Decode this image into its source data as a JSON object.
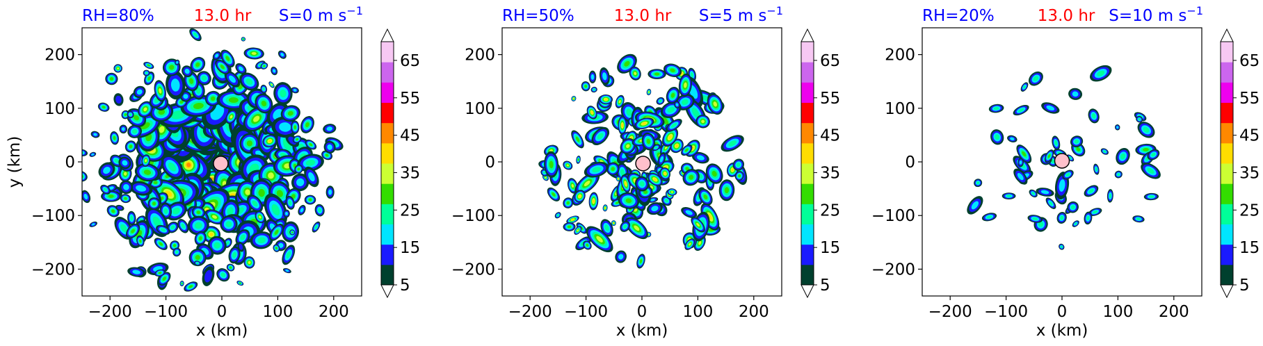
{
  "chart_data": [
    {
      "type": "heatmap",
      "title_parts": {
        "rh": "RH=80%",
        "time": "13.0 hr",
        "shear": "S=0 m s",
        "shear_exp": "−1"
      },
      "xlabel": "x (km)",
      "ylabel": "y (km)",
      "xlim": [
        -250,
        250
      ],
      "ylim": [
        -250,
        250
      ],
      "xticks": [
        -200,
        -100,
        0,
        100,
        200
      ],
      "yticks": [
        -200,
        -100,
        0,
        100,
        200
      ],
      "xtick_labels": [
        "−200",
        "−100",
        "0",
        "100",
        "200"
      ],
      "ytick_labels": [
        "−200",
        "−100",
        "0",
        "100",
        "200"
      ],
      "center_marker": {
        "x": -2,
        "y": -3,
        "color": "#ffc0cb"
      },
      "structure": "dense spiral rainbands with large continuous area, peak values 45-55 near core",
      "feature_count": 60,
      "intensity": 1.0
    },
    {
      "type": "heatmap",
      "title_parts": {
        "rh": "RH=50%",
        "time": "13.0 hr",
        "shear": "S=5 m s",
        "shear_exp": "−1"
      },
      "xlabel": "x (km)",
      "ylabel": "",
      "xlim": [
        -250,
        250
      ],
      "ylim": [
        -250,
        250
      ],
      "xticks": [
        -200,
        -100,
        0,
        100,
        200
      ],
      "yticks": [
        -200,
        -100,
        0,
        100,
        200
      ],
      "xtick_labels": [
        "−200",
        "−100",
        "0",
        "100",
        "200"
      ],
      "ytick_labels": [
        "−200",
        "−100",
        "0",
        "100",
        "200"
      ],
      "center_marker": {
        "x": 2,
        "y": -3,
        "color": "#ffc0cb"
      },
      "structure": "scattered convective cells arranged in rings, values mostly 15-45",
      "feature_count": 45,
      "intensity": 0.7
    },
    {
      "type": "heatmap",
      "title_parts": {
        "rh": "RH=20%",
        "time": "13.0 hr",
        "shear": "S=10 m s",
        "shear_exp": "−1"
      },
      "xlabel": "x (km)",
      "ylabel": "",
      "xlim": [
        -250,
        250
      ],
      "ylim": [
        -250,
        250
      ],
      "xticks": [
        -200,
        -100,
        0,
        100,
        200
      ],
      "yticks": [
        -200,
        -100,
        0,
        100,
        200
      ],
      "xtick_labels": [
        "−200",
        "−100",
        "0",
        "100",
        "200"
      ],
      "ytick_labels": [
        "−200",
        "−100",
        "0",
        "100",
        "200"
      ],
      "center_marker": {
        "x": 0,
        "y": 2,
        "color": "#ffc0cb"
      },
      "structure": "sparse isolated small cells, values mostly 15-35",
      "feature_count": 30,
      "intensity": 0.4
    }
  ],
  "colorbar": {
    "levels": [
      5,
      10,
      15,
      20,
      25,
      30,
      35,
      40,
      45,
      50,
      55,
      60,
      65,
      70
    ],
    "tick_labels": [
      "5",
      "15",
      "25",
      "35",
      "45",
      "55",
      "65"
    ],
    "tick_values": [
      5,
      15,
      25,
      35,
      45,
      55,
      65
    ],
    "colors": [
      "#00402e",
      "#1a1aff",
      "#00e5ff",
      "#00ff99",
      "#33dd00",
      "#ccff33",
      "#ffdd00",
      "#ff8800",
      "#ff0000",
      "#ee00ee",
      "#cc66ee",
      "#f7c8f3"
    ],
    "extend": "both"
  },
  "colors": {
    "title_rh": "#0000ff",
    "title_time": "#ff0000",
    "title_shear": "#0000ff"
  }
}
